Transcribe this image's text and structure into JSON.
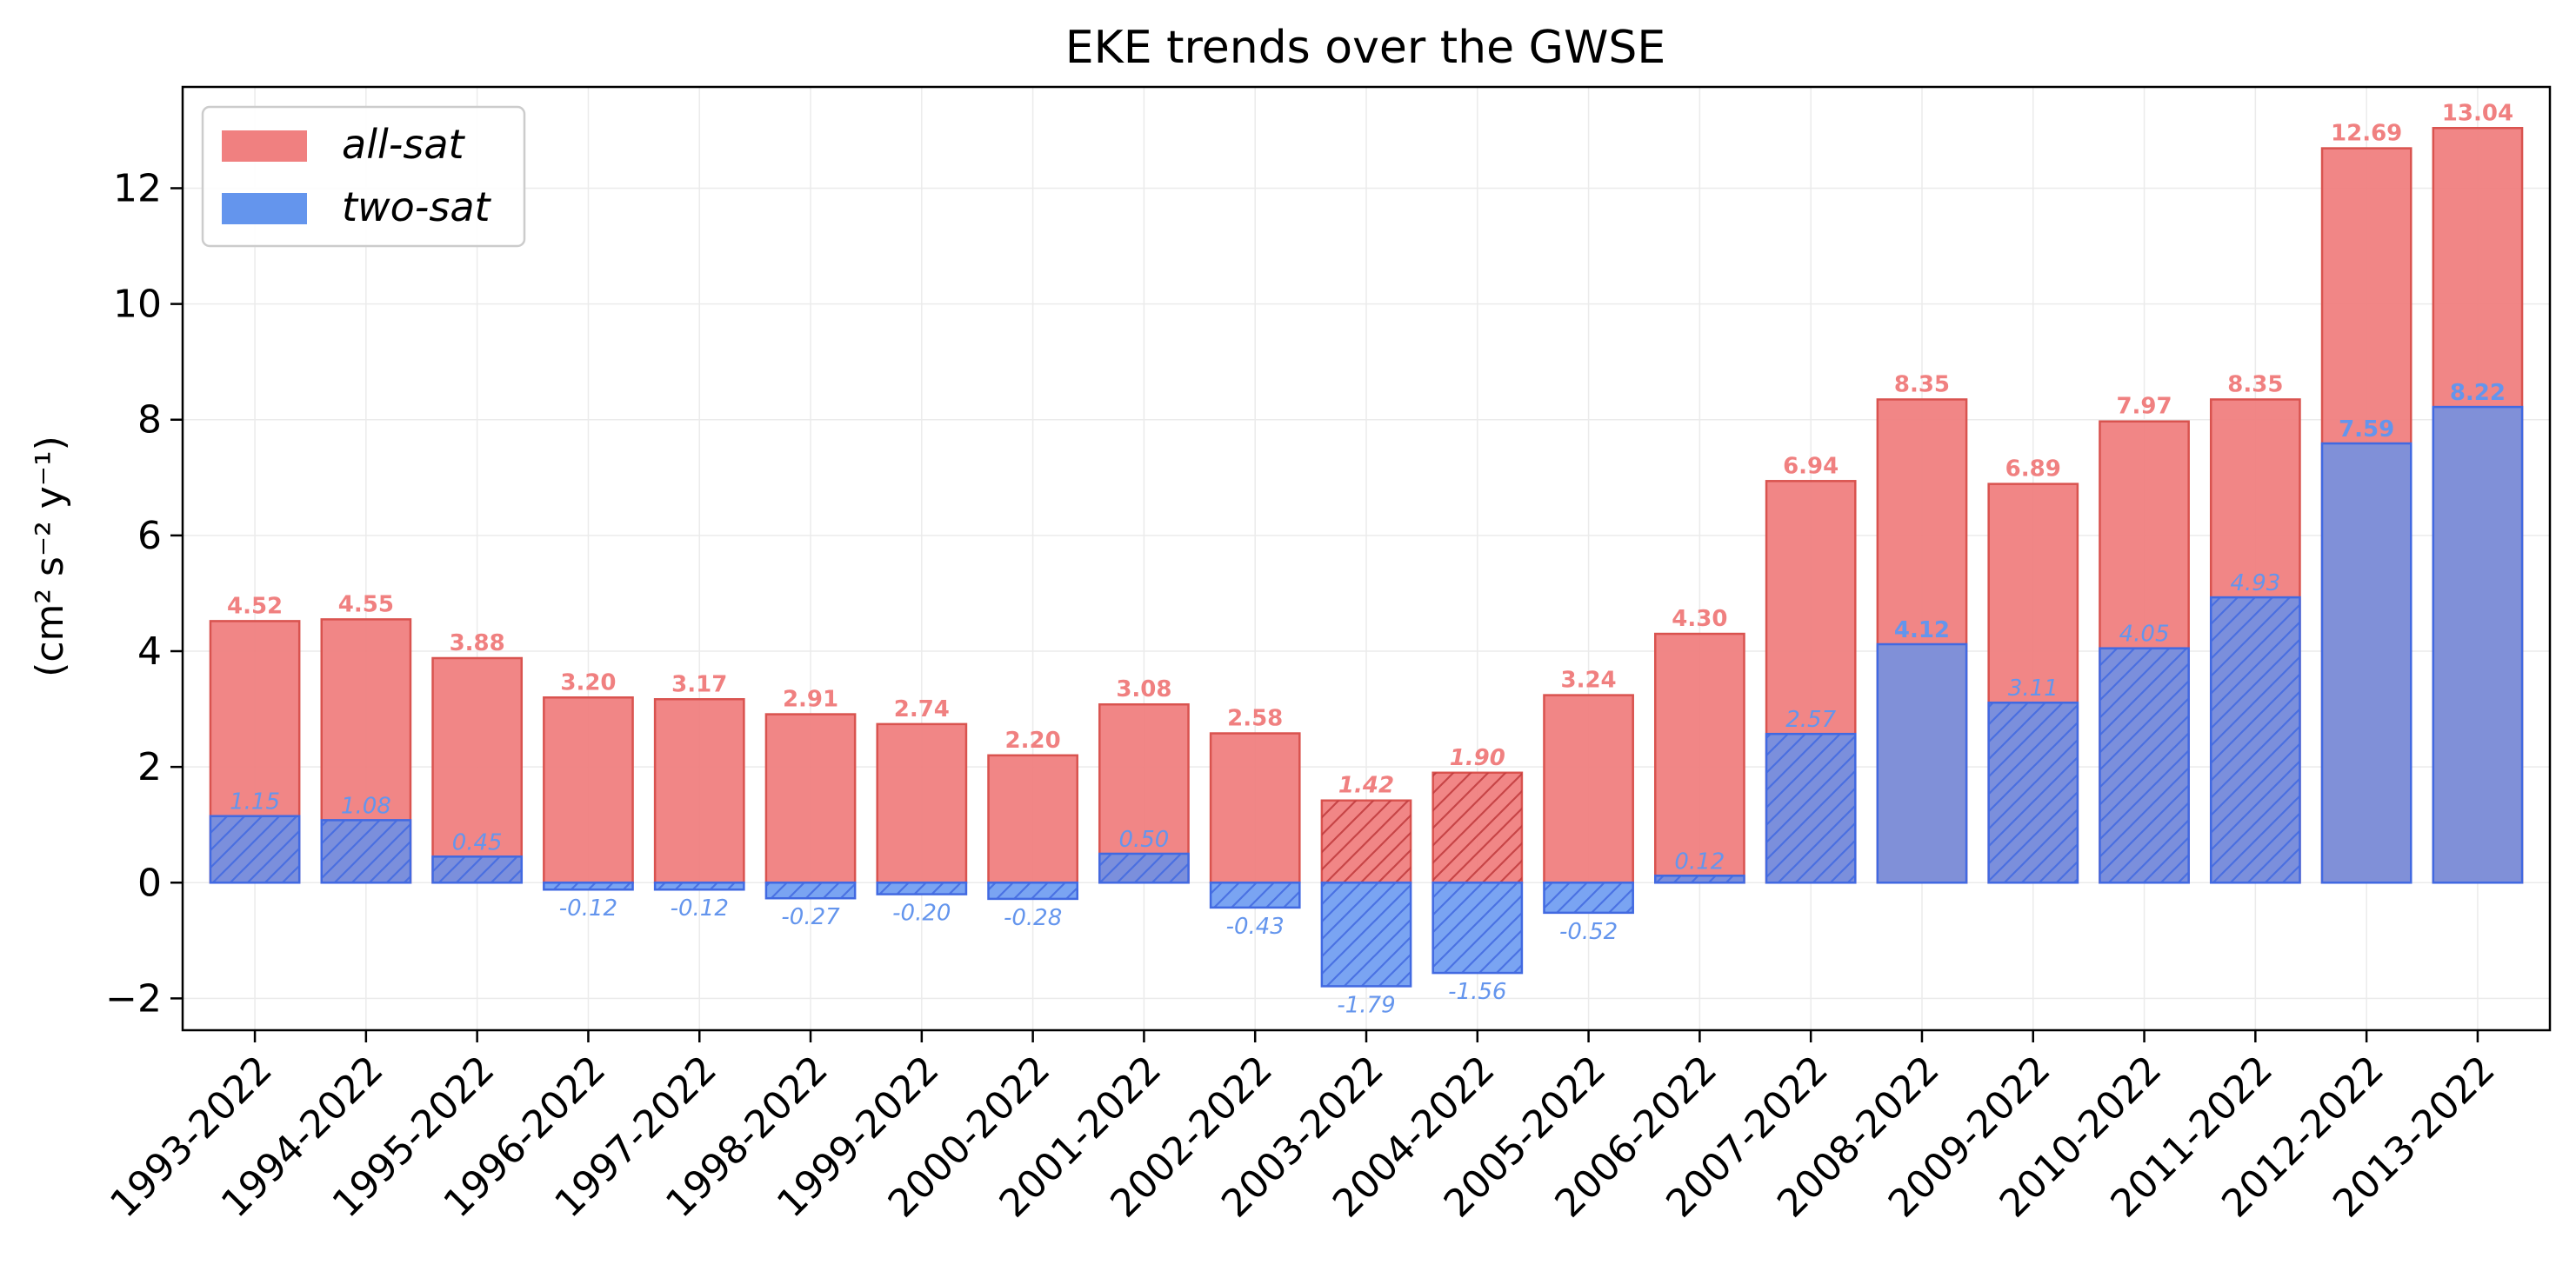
{
  "chart_data": {
    "type": "bar",
    "title": "EKE trends over the GWSE",
    "ylabel": "(cm² s⁻² y⁻¹)",
    "xlabel": "",
    "ylim": [
      -2.55,
      13.75
    ],
    "yticks": [
      -2,
      0,
      2,
      4,
      6,
      8,
      10,
      12
    ],
    "ytick_labels": [
      "−2",
      "0",
      "2",
      "4",
      "6",
      "8",
      "10",
      "12"
    ],
    "grid": true,
    "legend_position": "top-left",
    "categories": [
      "1993-2022",
      "1994-2022",
      "1995-2022",
      "1996-2022",
      "1997-2022",
      "1998-2022",
      "1999-2022",
      "2000-2022",
      "2001-2022",
      "2002-2022",
      "2003-2022",
      "2004-2022",
      "2005-2022",
      "2006-2022",
      "2007-2022",
      "2008-2022",
      "2009-2022",
      "2010-2022",
      "2011-2022",
      "2012-2022",
      "2013-2022"
    ],
    "series": [
      {
        "name": "all-sat",
        "color": "#f08080",
        "edge_color": "#d9534f",
        "values": [
          4.52,
          4.55,
          3.88,
          3.2,
          3.17,
          2.91,
          2.74,
          2.2,
          3.08,
          2.58,
          1.42,
          1.9,
          3.24,
          4.3,
          6.94,
          8.35,
          6.89,
          7.97,
          8.35,
          12.69,
          13.04
        ],
        "labels": [
          "4.52",
          "4.55",
          "3.88",
          "3.20",
          "3.17",
          "2.91",
          "2.74",
          "2.20",
          "3.08",
          "2.58",
          "1.42",
          "1.90",
          "3.24",
          "4.30",
          "6.94",
          "8.35",
          "6.89",
          "7.97",
          "8.35",
          "12.69",
          "13.04"
        ],
        "hatched": [
          false,
          false,
          false,
          false,
          false,
          false,
          false,
          false,
          false,
          false,
          true,
          true,
          false,
          false,
          false,
          false,
          false,
          false,
          false,
          false,
          false
        ],
        "italic_labels": [
          false,
          false,
          false,
          false,
          false,
          false,
          false,
          false,
          false,
          false,
          true,
          true,
          false,
          false,
          false,
          false,
          false,
          false,
          false,
          false,
          false
        ]
      },
      {
        "name": "two-sat",
        "color": "#6495ed",
        "edge_color": "#4169e1",
        "values": [
          1.15,
          1.08,
          0.45,
          -0.12,
          -0.12,
          -0.27,
          -0.2,
          -0.28,
          0.5,
          -0.43,
          -1.79,
          -1.56,
          -0.52,
          0.12,
          2.57,
          4.12,
          3.11,
          4.05,
          4.93,
          7.59,
          8.22
        ],
        "labels": [
          "1.15",
          "1.08",
          "0.45",
          "-0.12",
          "-0.12",
          "-0.27",
          "-0.20",
          "-0.28",
          "0.50",
          "-0.43",
          "-1.79",
          "-1.56",
          "-0.52",
          "0.12",
          "2.57",
          "4.12",
          "3.11",
          "4.05",
          "4.93",
          "7.59",
          "8.22"
        ],
        "hatched": [
          true,
          true,
          true,
          true,
          true,
          true,
          true,
          true,
          true,
          true,
          true,
          true,
          true,
          true,
          true,
          false,
          true,
          true,
          true,
          false,
          false
        ],
        "italic_labels": [
          true,
          true,
          true,
          true,
          true,
          true,
          true,
          true,
          true,
          true,
          true,
          true,
          true,
          true,
          true,
          false,
          true,
          true,
          true,
          false,
          false
        ]
      }
    ]
  },
  "legend": {
    "items": [
      {
        "label": "all-sat",
        "color": "#f08080"
      },
      {
        "label": "two-sat",
        "color": "#6495ed"
      }
    ]
  }
}
